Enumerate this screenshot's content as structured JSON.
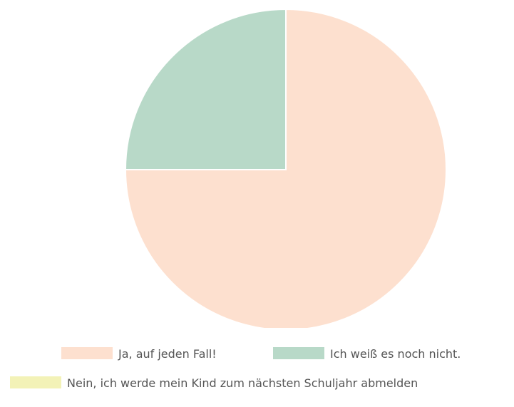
{
  "chart_data": {
    "type": "pie",
    "title": "",
    "legend_position": "bottom",
    "slices": [
      {
        "label": "Ja, auf jeden Fall!",
        "value": 75,
        "color": "#fde0cf"
      },
      {
        "label": "Ich weiß es noch nicht.",
        "value": 25,
        "color": "#b8d9c8"
      },
      {
        "label": "Nein, ich werde mein Kind zum nächsten Schuljahr abmelden",
        "value": 0,
        "color": "#f3f2b7"
      }
    ]
  }
}
